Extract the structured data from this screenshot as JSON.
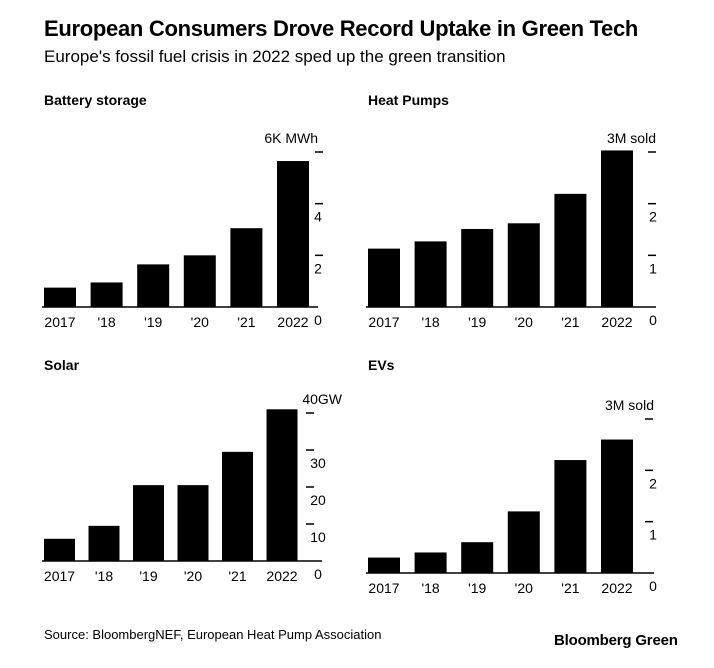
{
  "title": "European Consumers Drove Record Uptake in Green Tech",
  "subtitle": "Europe's fossil fuel crisis in 2022 sped up the green transition",
  "source": "Source: BloombergNEF, European Heat Pump Association",
  "brand": "Bloomberg Green",
  "colors": {
    "bar": "#000000",
    "axis": "#000000",
    "background": "#ffffff"
  },
  "chart_data": [
    {
      "type": "bar",
      "title": "Battery storage",
      "categories": [
        "2017",
        "'18",
        "'19",
        "'20",
        "'21",
        "2022"
      ],
      "values": [
        0.75,
        0.95,
        1.65,
        2.0,
        3.05,
        5.65
      ],
      "ylim": [
        0,
        6
      ],
      "yticks": [
        0,
        2,
        4,
        6
      ],
      "ytick_labels": [
        "0",
        "2",
        "4",
        "6K MWh"
      ]
    },
    {
      "type": "bar",
      "title": "Heat Pumps",
      "categories": [
        "2017",
        "'18",
        "'19",
        "'20",
        "'21",
        "2022"
      ],
      "values": [
        1.13,
        1.27,
        1.51,
        1.62,
        2.19,
        3.03
      ],
      "ylim": [
        0,
        3
      ],
      "yticks": [
        0,
        1,
        2,
        3
      ],
      "ytick_labels": [
        "0",
        "1",
        "2",
        "3M sold"
      ]
    },
    {
      "type": "bar",
      "title": "Solar",
      "categories": [
        "2017",
        "'18",
        "'19",
        "'20",
        "'21",
        "2022"
      ],
      "values": [
        6,
        9.5,
        20.5,
        20.5,
        29.5,
        41
      ],
      "ylim": [
        0,
        40
      ],
      "yticks": [
        0,
        10,
        20,
        30,
        40
      ],
      "ytick_labels": [
        "0",
        "10",
        "20",
        "30",
        "40GW"
      ]
    },
    {
      "type": "bar",
      "title": "EVs",
      "categories": [
        "2017",
        "'18",
        "'19",
        "'20",
        "'21",
        "2022"
      ],
      "values": [
        0.3,
        0.4,
        0.6,
        1.2,
        2.2,
        2.6
      ],
      "ylim": [
        0,
        3
      ],
      "yticks": [
        0,
        1,
        2,
        3
      ],
      "ytick_labels": [
        "0",
        "1",
        "2",
        "3M sold"
      ]
    }
  ]
}
